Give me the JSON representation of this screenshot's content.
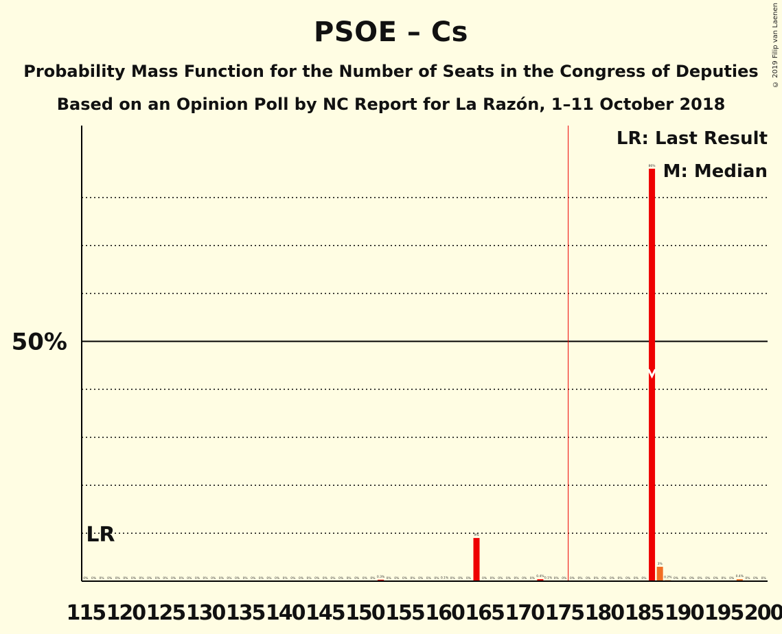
{
  "title": "PSOE – Cs",
  "subtitle1": "Probability Mass Function for the Number of Seats in the Congress of Deputies",
  "subtitle2": "Based on an Opinion Poll by NC Report for La Razón, 1–11 October 2018",
  "copyright": "© 2019 Filip van Laenen",
  "legend": {
    "last_result": "LR: Last Result",
    "median": "M: Median"
  },
  "colors": {
    "background": "#FFFDE3",
    "bar": "#EE0000",
    "bar_alt": "#F16D22",
    "axis": "#000000"
  },
  "chart_data": {
    "type": "bar",
    "xlabel": "",
    "ylabel": "",
    "x_range": [
      115,
      200
    ],
    "x_tick_labels": [
      "115",
      "120",
      "125",
      "130",
      "135",
      "140",
      "145",
      "150",
      "155",
      "160",
      "165",
      "170",
      "175",
      "180",
      "185",
      "190",
      "195",
      "200"
    ],
    "y_range_percent": [
      0,
      95
    ],
    "y_tick_labels": [
      "50%"
    ],
    "y_tick_values": [
      50
    ],
    "y_gridlines": [
      10,
      20,
      30,
      40,
      60,
      70,
      80
    ],
    "majority_line_seat": 176,
    "last_result": {
      "seat": 116,
      "label": "LR"
    },
    "median": {
      "seat": 186,
      "label": "M"
    },
    "seats": [
      115,
      116,
      117,
      118,
      119,
      120,
      121,
      122,
      123,
      124,
      125,
      126,
      127,
      128,
      129,
      130,
      131,
      132,
      133,
      134,
      135,
      136,
      137,
      138,
      139,
      140,
      141,
      142,
      143,
      144,
      145,
      146,
      147,
      148,
      149,
      150,
      151,
      152,
      153,
      154,
      155,
      156,
      157,
      158,
      159,
      160,
      161,
      162,
      163,
      164,
      165,
      166,
      167,
      168,
      169,
      170,
      171,
      172,
      173,
      174,
      175,
      176,
      177,
      178,
      179,
      180,
      181,
      182,
      183,
      184,
      185,
      186,
      187,
      188,
      189,
      190,
      191,
      192,
      193,
      194,
      195,
      196,
      197,
      198,
      199,
      200
    ],
    "values": [
      0,
      0,
      0,
      0,
      0,
      0,
      0,
      0,
      0,
      0,
      0,
      0,
      0,
      0,
      0,
      0,
      0,
      0,
      0,
      0,
      0,
      0,
      0,
      0,
      0,
      0,
      0,
      0,
      0,
      0,
      0,
      0,
      0,
      0,
      0,
      0,
      0,
      0.3,
      0,
      0,
      0,
      0,
      0,
      0,
      0,
      0.1,
      0,
      0,
      0,
      9,
      0,
      0,
      0,
      0,
      0,
      0,
      0,
      0.4,
      0.1,
      0,
      0,
      0,
      0,
      0,
      0,
      0,
      0,
      0,
      0,
      0,
      0,
      86,
      3,
      0.2,
      0,
      0,
      0,
      0,
      0,
      0,
      0,
      0,
      0.4,
      0,
      0,
      0
    ],
    "bar_labels": [
      "0%",
      "0%",
      "0%",
      "0%",
      "0%",
      "0%",
      "0%",
      "0%",
      "0%",
      "0%",
      "0%",
      "0%",
      "0%",
      "0%",
      "0%",
      "0%",
      "0%",
      "0%",
      "0%",
      "0%",
      "0%",
      "0%",
      "0%",
      "0%",
      "0%",
      "0%",
      "0%",
      "0%",
      "0%",
      "0%",
      "0%",
      "0%",
      "0%",
      "0%",
      "0%",
      "0%",
      "0%",
      "0.3%",
      "0%",
      "0%",
      "0%",
      "0%",
      "0%",
      "0%",
      "0%",
      "0.1%",
      "0%",
      "0%",
      "0%",
      "9%",
      "0%",
      "0%",
      "0%",
      "0%",
      "0%",
      "0%",
      "0%",
      "0.4%",
      "0.1%",
      "0%",
      "0%",
      "0%",
      "0%",
      "0%",
      "0%",
      "0%",
      "0%",
      "0%",
      "0%",
      "0%",
      "0%",
      "86%",
      "3%",
      "0.2%",
      "0%",
      "0%",
      "0%",
      "0%",
      "0%",
      "0%",
      "0%",
      "0%",
      "0.4%",
      "0%",
      "0%",
      "0%"
    ]
  }
}
